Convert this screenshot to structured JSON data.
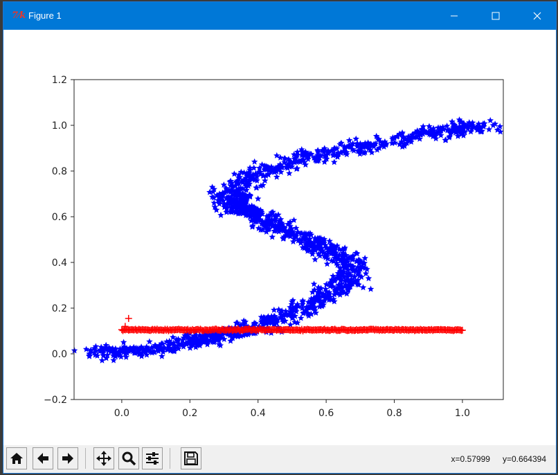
{
  "window": {
    "title": "Figure 1",
    "app_icon": "tk-feather-icon",
    "controls": [
      "minimize-icon",
      "maximize-icon",
      "close-icon"
    ]
  },
  "toolbar": {
    "buttons": [
      "home-icon",
      "back-arrow-icon",
      "forward-arrow-icon",
      "pan-move-icon",
      "zoom-magnifier-icon",
      "configure-subplots-icon",
      "save-floppy-icon"
    ],
    "coord_x": "x=0.57999",
    "coord_y": "y=0.664394"
  },
  "colors": {
    "titlebar": "#0078d7",
    "series_blue": "#0000ff",
    "series_red": "#ff0000"
  },
  "chart_data": {
    "type": "scatter",
    "title": "",
    "xlabel": "",
    "ylabel": "",
    "xlim": [
      -0.14,
      1.12
    ],
    "ylim": [
      -0.2,
      1.2
    ],
    "grid": false,
    "x_ticks": [
      "0.0",
      "0.2",
      "0.4",
      "0.6",
      "0.8",
      "1.0"
    ],
    "x_tick_values": [
      0.0,
      0.2,
      0.4,
      0.6,
      0.8,
      1.0
    ],
    "y_ticks": [
      "−0.2",
      "0.0",
      "0.2",
      "0.4",
      "0.6",
      "0.8",
      "1.0",
      "1.2"
    ],
    "y_tick_values": [
      -0.2,
      0.0,
      0.2,
      0.4,
      0.6,
      0.8,
      1.0,
      1.2
    ],
    "series": [
      {
        "marker": "star",
        "color": "#0000ff",
        "point_count": 1500,
        "curve": {
          "x": [
            -0.08,
            0.0,
            0.08,
            0.16,
            0.22,
            0.28,
            0.34,
            0.4,
            0.46,
            0.52,
            0.58,
            0.63,
            0.67,
            0.68,
            0.65,
            0.6,
            0.54,
            0.48,
            0.44,
            0.4,
            0.36,
            0.33,
            0.32,
            0.34,
            0.38,
            0.44,
            0.52,
            0.62,
            0.72,
            0.82,
            0.92,
            1.0,
            1.08
          ],
          "y": [
            0.0,
            0.01,
            0.02,
            0.04,
            0.06,
            0.08,
            0.1,
            0.12,
            0.15,
            0.19,
            0.24,
            0.28,
            0.33,
            0.38,
            0.42,
            0.46,
            0.5,
            0.54,
            0.57,
            0.6,
            0.63,
            0.66,
            0.69,
            0.73,
            0.77,
            0.81,
            0.85,
            0.88,
            0.91,
            0.94,
            0.97,
            0.99,
            1.0
          ]
        },
        "spread": 0.03
      },
      {
        "marker": "plus",
        "color": "#ff0000",
        "x_range": [
          0.0,
          1.0
        ],
        "y": 0.105,
        "point_count": 300,
        "outliers": [
          {
            "x": 0.02,
            "y": 0.155
          },
          {
            "x": 0.01,
            "y": 0.12
          }
        ]
      }
    ]
  }
}
